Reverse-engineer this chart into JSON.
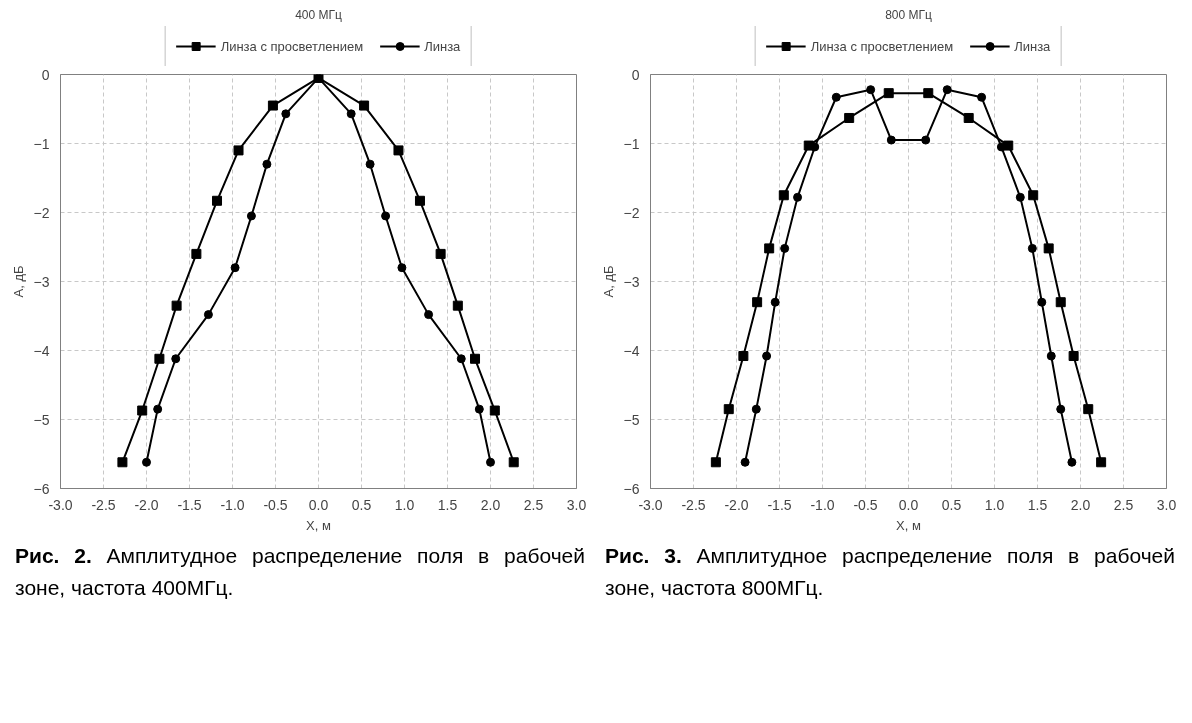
{
  "chart_data": [
    {
      "type": "line",
      "title": "400 МГц",
      "xlabel": "X, м",
      "ylabel": "А, дБ",
      "xlim": [
        -3,
        3
      ],
      "ylim": [
        -6,
        0
      ],
      "xticks": [
        {
          "value": -3,
          "label": "-3.0"
        },
        {
          "value": -2.5,
          "label": "-2.5"
        },
        {
          "value": -2,
          "label": "-2.0"
        },
        {
          "value": -1.5,
          "label": "-1.5"
        },
        {
          "value": -1,
          "label": "-1.0"
        },
        {
          "value": -0.5,
          "label": "-0.5"
        },
        {
          "value": 0,
          "label": "0.0"
        },
        {
          "value": 0.5,
          "label": "0.5"
        },
        {
          "value": 1,
          "label": "1.0"
        },
        {
          "value": 1.5,
          "label": "1.5"
        },
        {
          "value": 2,
          "label": "2.0"
        },
        {
          "value": 2.5,
          "label": "2.5"
        },
        {
          "value": 3,
          "label": "3.0"
        }
      ],
      "yticks": [
        0,
        -1,
        -2,
        -3,
        -4,
        -5,
        -6
      ],
      "grid": true,
      "legend": "top",
      "line_style": "solid",
      "annotations": [
        "Рис. 2. Амплитудное распределение поля в рабочей зоне, частота 400МГц."
      ],
      "series": [
        {
          "name": "Линза с просветлением",
          "color": "#000000",
          "marker": "square",
          "x": [
            -2.28,
            -2.05,
            -1.85,
            -1.65,
            -1.42,
            -1.18,
            -0.93,
            -0.53,
            0,
            0.53,
            0.93,
            1.18,
            1.42,
            1.62,
            1.82,
            2.05,
            2.27
          ],
          "values": [
            -5.62,
            -4.87,
            -4.12,
            -3.35,
            -2.6,
            -1.83,
            -1.1,
            -0.45,
            -0.05,
            -0.45,
            -1.1,
            -1.83,
            -2.6,
            -3.35,
            -4.12,
            -4.87,
            -5.62
          ]
        },
        {
          "name": "Линза",
          "color": "#000000",
          "marker": "circle",
          "x": [
            -2.0,
            -1.87,
            -1.66,
            -1.28,
            -0.97,
            -0.78,
            -0.6,
            -0.38,
            0,
            0.38,
            0.6,
            0.78,
            0.97,
            1.28,
            1.66,
            1.87,
            2.0
          ],
          "values": [
            -5.62,
            -4.85,
            -4.12,
            -3.48,
            -2.8,
            -2.05,
            -1.3,
            -0.57,
            -0.05,
            -0.57,
            -1.3,
            -2.05,
            -2.8,
            -3.48,
            -4.12,
            -4.85,
            -5.62
          ]
        }
      ]
    },
    {
      "type": "line",
      "title": "800 МГц",
      "xlabel": "X, м",
      "ylabel": "А, дБ",
      "xlim": [
        -3,
        3
      ],
      "ylim": [
        -6,
        0
      ],
      "xticks": [
        {
          "value": -3,
          "label": "-3.0"
        },
        {
          "value": -2.5,
          "label": "-2.5"
        },
        {
          "value": -2,
          "label": "-2.0"
        },
        {
          "value": -1.5,
          "label": "-1.5"
        },
        {
          "value": -1,
          "label": "-1.0"
        },
        {
          "value": -0.5,
          "label": "-0.5"
        },
        {
          "value": 0,
          "label": "0.0"
        },
        {
          "value": 0.5,
          "label": "0.5"
        },
        {
          "value": 1,
          "label": "1.0"
        },
        {
          "value": 1.5,
          "label": "1.5"
        },
        {
          "value": 2,
          "label": "2.0"
        },
        {
          "value": 2.5,
          "label": "2.5"
        },
        {
          "value": 3,
          "label": "3.0"
        }
      ],
      "yticks": [
        0,
        -1,
        -2,
        -3,
        -4,
        -5,
        -6
      ],
      "grid": true,
      "legend": "top",
      "line_style": "solid",
      "annotations": [
        "Рис. 3. Амплитудное распределение поля в рабочей зоне, частота 800МГц."
      ],
      "series": [
        {
          "name": "Линза с просветлением",
          "color": "#000000",
          "marker": "square",
          "x": [
            -2.24,
            -2.09,
            -1.92,
            -1.76,
            -1.62,
            -1.45,
            -1.16,
            -0.69,
            -0.23,
            0.23,
            0.7,
            1.16,
            1.45,
            1.63,
            1.77,
            1.92,
            2.09,
            2.24
          ],
          "values": [
            -5.62,
            -4.85,
            -4.08,
            -3.3,
            -2.52,
            -1.75,
            -1.03,
            -0.63,
            -0.27,
            -0.27,
            -0.63,
            -1.03,
            -1.75,
            -2.52,
            -3.3,
            -4.08,
            -4.85,
            -5.62
          ]
        },
        {
          "name": "Линза",
          "color": "#000000",
          "marker": "circle",
          "x": [
            -1.9,
            -1.77,
            -1.65,
            -1.55,
            -1.44,
            -1.29,
            -1.09,
            -0.84,
            -0.44,
            -0.2,
            0.2,
            0.45,
            0.85,
            1.08,
            1.3,
            1.44,
            1.55,
            1.66,
            1.77,
            1.9
          ],
          "values": [
            -5.62,
            -4.85,
            -4.08,
            -3.3,
            -2.52,
            -1.78,
            -1.05,
            -0.33,
            -0.22,
            -0.95,
            -0.95,
            -0.22,
            -0.33,
            -1.05,
            -1.78,
            -2.52,
            -3.3,
            -4.08,
            -4.85,
            -5.62
          ]
        }
      ]
    }
  ]
}
